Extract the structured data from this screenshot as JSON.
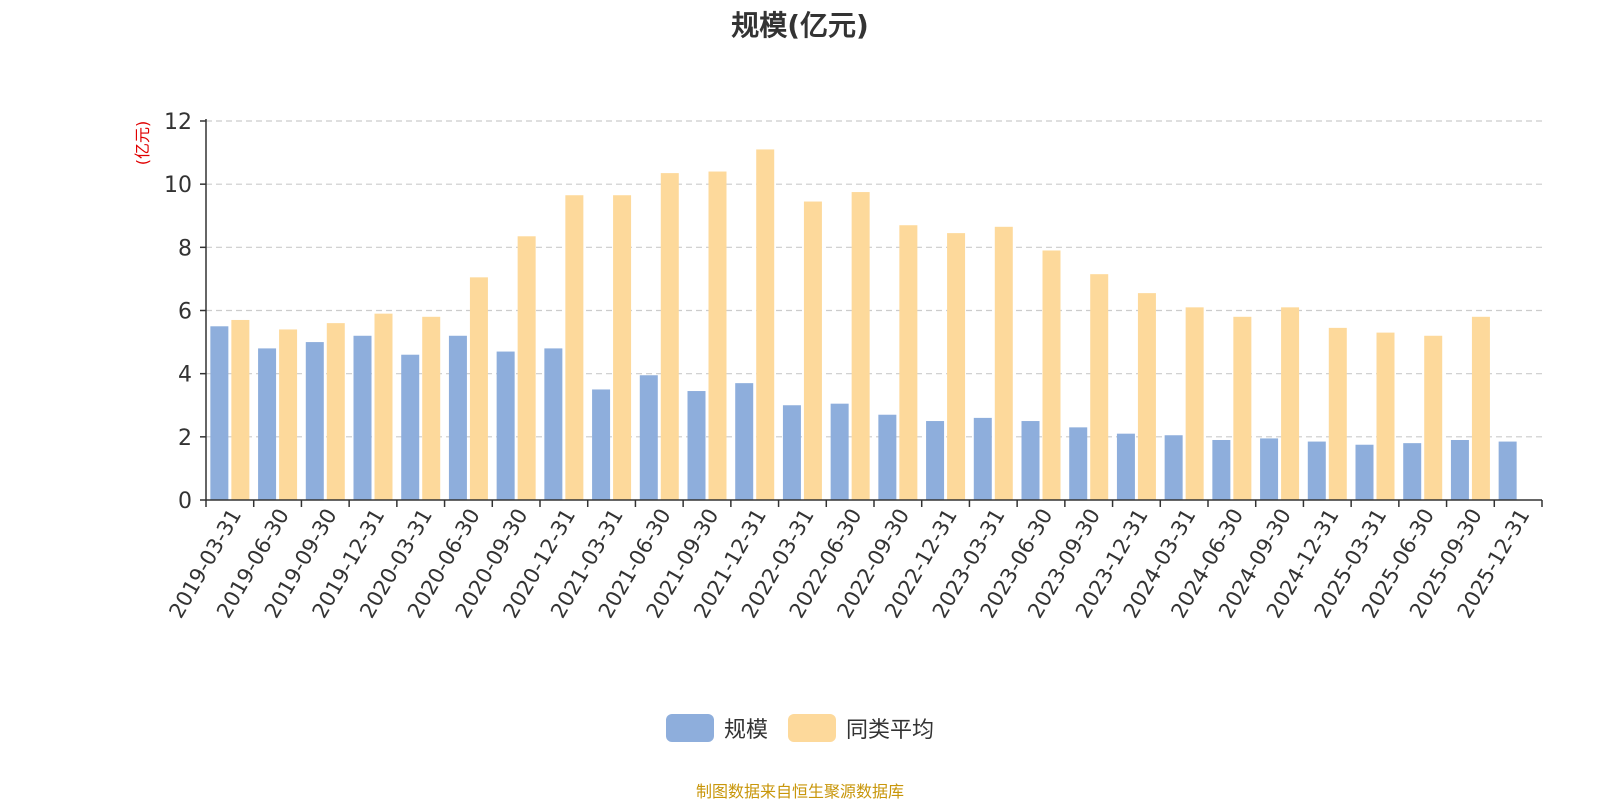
{
  "chart_data": {
    "type": "bar",
    "title": "规模(亿元)",
    "ylabel": "(亿元)",
    "xlabel": "",
    "ylim": [
      0,
      12
    ],
    "yticks": [
      0,
      2,
      4,
      6,
      8,
      10,
      12
    ],
    "grid": true,
    "legend_position": "bottom-center",
    "categories": [
      "2019-03-31",
      "2019-06-30",
      "2019-09-30",
      "2019-12-31",
      "2020-03-31",
      "2020-06-30",
      "2020-09-30",
      "2020-12-31",
      "2021-03-31",
      "2021-06-30",
      "2021-09-30",
      "2021-12-31",
      "2022-03-31",
      "2022-06-30",
      "2022-09-30",
      "2022-12-31",
      "2023-03-31",
      "2023-06-30",
      "2023-09-30",
      "2023-12-31",
      "2024-03-31",
      "2024-06-30",
      "2024-09-30",
      "2024-12-31",
      "2025-03-31",
      "2025-06-30",
      "2025-09-30",
      "2025-12-31"
    ],
    "series": [
      {
        "name": "规模",
        "color": "#8eaedc",
        "values": [
          5.5,
          4.8,
          5.0,
          5.2,
          4.6,
          5.2,
          4.7,
          4.8,
          3.5,
          3.95,
          3.45,
          3.7,
          3.0,
          3.05,
          2.7,
          2.5,
          2.6,
          2.5,
          2.3,
          2.1,
          2.05,
          1.9,
          1.95,
          1.85,
          1.75,
          1.8,
          1.9,
          1.85
        ]
      },
      {
        "name": "同类平均",
        "color": "#fdd99b",
        "values": [
          5.7,
          5.4,
          5.6,
          5.9,
          5.8,
          7.05,
          8.35,
          9.65,
          9.65,
          10.35,
          10.4,
          11.1,
          9.45,
          9.75,
          8.7,
          8.45,
          8.65,
          7.9,
          7.15,
          6.55,
          6.1,
          5.8,
          6.1,
          5.45,
          5.3,
          5.2,
          5.8,
          null
        ]
      }
    ]
  },
  "source_note": "制图数据来自恒生聚源数据库",
  "colors": {
    "axis": "#333333",
    "grid": "#cccccc",
    "ylabel": "#e00000",
    "source": "#c8960a"
  }
}
